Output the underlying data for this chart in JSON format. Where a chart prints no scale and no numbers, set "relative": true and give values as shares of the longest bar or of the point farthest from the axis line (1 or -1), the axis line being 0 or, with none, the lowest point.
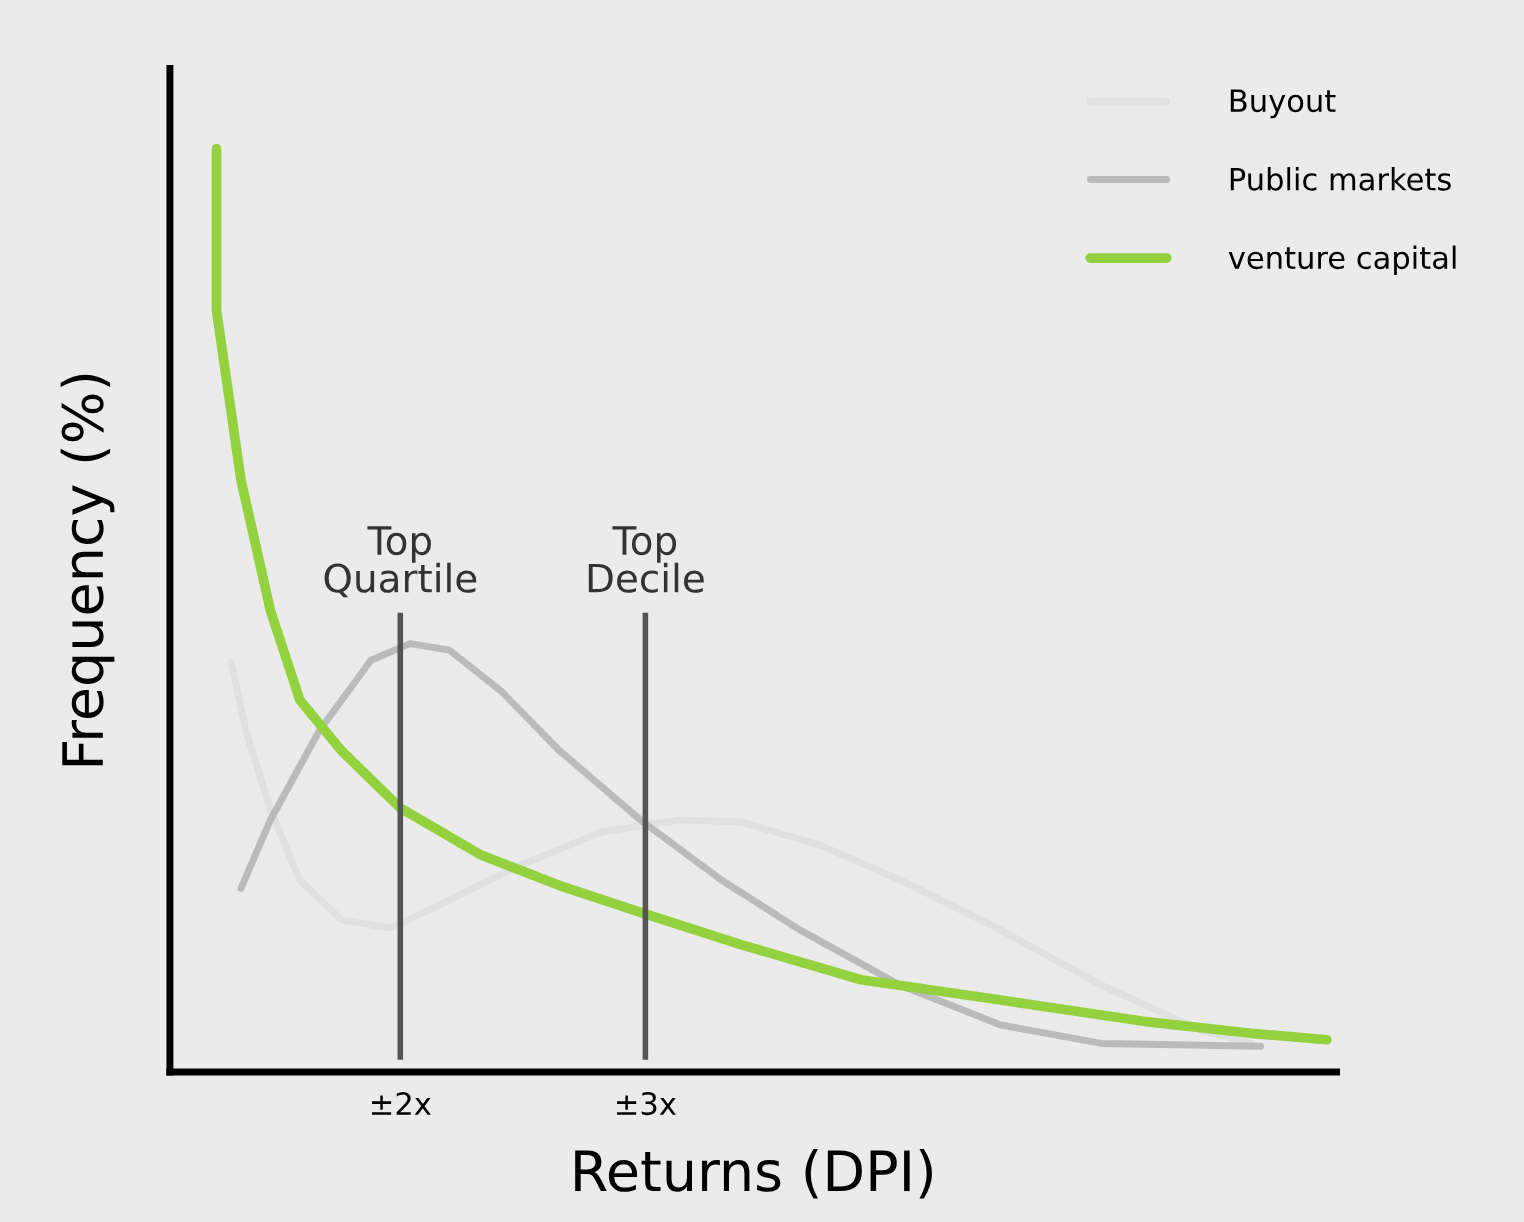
{
  "chart_data": {
    "type": "line",
    "relative": true,
    "xlabel": "Returns (DPI)",
    "ylabel": "Frequency (%)",
    "xlim": [
      1.06,
      5.82
    ],
    "xticks": [
      {
        "value": 2,
        "label": "±2x"
      },
      {
        "value": 3,
        "label": "±3x"
      }
    ],
    "grid": false,
    "legend": "top right",
    "marker": "none",
    "line_style": "solid",
    "ref_lines": [
      {
        "axis": "x",
        "value": 2,
        "label": "Top Quartile",
        "color": "#555555"
      },
      {
        "axis": "x",
        "value": 3,
        "label": "Top Decile",
        "color": "#555555"
      }
    ],
    "series": [
      {
        "name": "Buyout",
        "color": "#e0e0e0",
        "x": [
          1.31,
          1.37,
          1.47,
          1.59,
          1.76,
          1.96,
          2.16,
          2.49,
          2.82,
          3.14,
          3.39,
          3.71,
          4.04,
          4.45,
          4.86,
          5.27,
          5.47
        ],
        "values": [
          0.444,
          0.37,
          0.284,
          0.208,
          0.165,
          0.156,
          0.181,
          0.224,
          0.26,
          0.273,
          0.271,
          0.246,
          0.208,
          0.154,
          0.094,
          0.045,
          0.031
        ]
      },
      {
        "name": "Public markets",
        "color": "#bbbbbb",
        "x": [
          1.35,
          1.47,
          1.67,
          1.88,
          2.04,
          2.2,
          2.41,
          2.65,
          2.98,
          3.31,
          3.63,
          4.04,
          4.45,
          4.86,
          5.51
        ],
        "values": [
          0.199,
          0.273,
          0.37,
          0.446,
          0.464,
          0.457,
          0.413,
          0.348,
          0.273,
          0.208,
          0.154,
          0.094,
          0.051,
          0.031,
          0.028
        ]
      },
      {
        "name": "venture capital",
        "color": "#94d13f",
        "x": [
          1.25,
          1.25,
          1.35,
          1.47,
          1.59,
          1.76,
          2.0,
          2.33,
          2.65,
          2.98,
          3.39,
          3.88,
          4.45,
          5.06,
          5.47,
          5.78
        ],
        "values": [
          1.0,
          0.825,
          0.641,
          0.5,
          0.403,
          0.348,
          0.286,
          0.235,
          0.202,
          0.173,
          0.138,
          0.1,
          0.078,
          0.054,
          0.042,
          0.035
        ]
      }
    ]
  }
}
